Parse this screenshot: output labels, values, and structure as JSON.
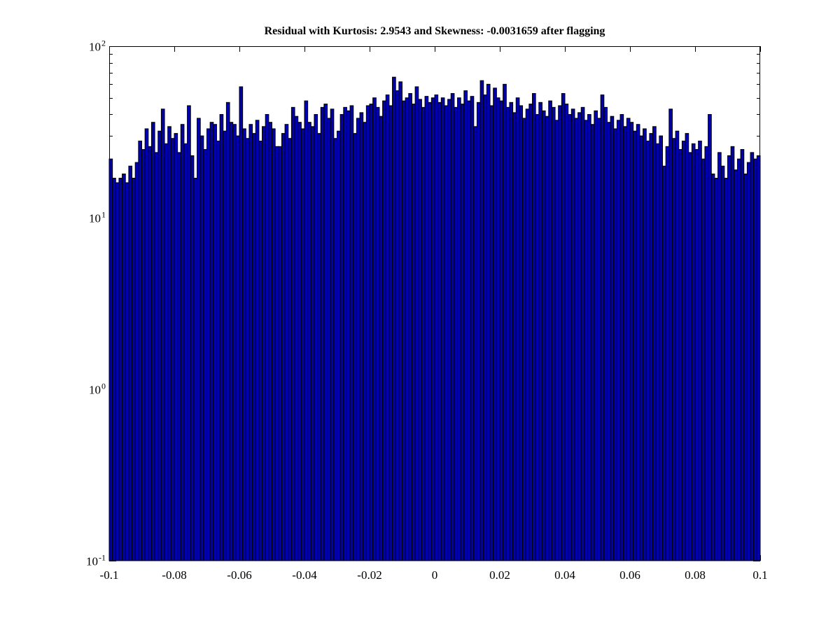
{
  "chart_data": {
    "type": "bar",
    "subtype": "histogram",
    "title": "Residual with Kurtosis: 2.9543 and Skewness: -0.0031659 after flagging",
    "xlabel": "",
    "ylabel": "",
    "xlim": [
      -0.1,
      0.1
    ],
    "yscale": "log",
    "ylim": [
      0.1,
      100
    ],
    "grid": false,
    "legend": false,
    "bin_width": 0.001,
    "bar_color": "#0000AF",
    "bar_edge_color": "#000000",
    "axis_color": "#000000",
    "background_color": "#ffffff",
    "x_ticks": [
      -0.1,
      -0.08,
      -0.06,
      -0.04,
      -0.02,
      0,
      0.02,
      0.04,
      0.06,
      0.08,
      0.1
    ],
    "x_tick_labels": [
      "-0.1",
      "-0.08",
      "-0.06",
      "-0.04",
      "-0.02",
      "0",
      "0.02",
      "0.04",
      "0.06",
      "0.08",
      "0.1"
    ],
    "y_ticks": [
      {
        "base": "10",
        "exp": "2",
        "value": 100
      },
      {
        "base": "10",
        "exp": "1",
        "value": 10
      },
      {
        "base": "10",
        "exp": "0",
        "value": 1
      },
      {
        "base": "10",
        "exp": "-1",
        "value": 0.1
      }
    ],
    "values": [
      22,
      17,
      16,
      17,
      18,
      16,
      20,
      17,
      21,
      28,
      25,
      33,
      26,
      36,
      24,
      32,
      43,
      27,
      34,
      29,
      31,
      24,
      35,
      27,
      45,
      23,
      17,
      38,
      30,
      25,
      33,
      36,
      35,
      28,
      40,
      32,
      47,
      36,
      35,
      30,
      58,
      33,
      29,
      35,
      31,
      37,
      28,
      34,
      40,
      36,
      33,
      26,
      26,
      31,
      35,
      29,
      44,
      39,
      36,
      33,
      48,
      36,
      34,
      40,
      31,
      44,
      46,
      38,
      43,
      29,
      32,
      40,
      44,
      42,
      45,
      31,
      38,
      41,
      36,
      45,
      46,
      50,
      44,
      39,
      48,
      52,
      45,
      66,
      55,
      62,
      48,
      50,
      53,
      46,
      58,
      49,
      44,
      51,
      47,
      50,
      52,
      47,
      50,
      45,
      49,
      53,
      44,
      50,
      46,
      55,
      48,
      51,
      34,
      47,
      63,
      52,
      60,
      45,
      57,
      50,
      48,
      60,
      44,
      47,
      41,
      50,
      45,
      38,
      43,
      46,
      53,
      40,
      47,
      42,
      39,
      48,
      44,
      37,
      45,
      53,
      46,
      40,
      43,
      38,
      41,
      44,
      37,
      40,
      35,
      42,
      38,
      52,
      44,
      36,
      39,
      33,
      37,
      40,
      34,
      38,
      36,
      32,
      35,
      30,
      33,
      28,
      31,
      34,
      27,
      30,
      20,
      26,
      43,
      29,
      32,
      25,
      28,
      31,
      24,
      27,
      25,
      28,
      22,
      26,
      40,
      18,
      17,
      24,
      20,
      17,
      23,
      26,
      19,
      22,
      25,
      18,
      21,
      24,
      22,
      23
    ]
  }
}
